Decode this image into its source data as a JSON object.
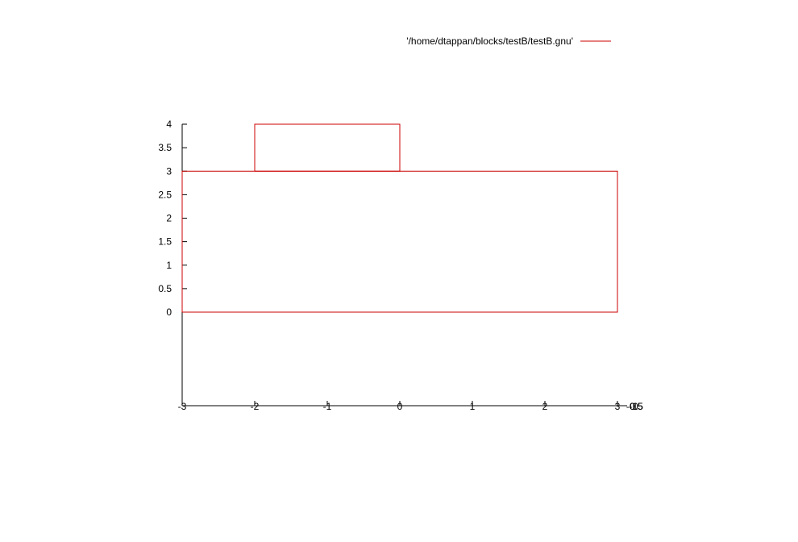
{
  "chart_data": {
    "type": "line",
    "title": "",
    "xlabel": "",
    "ylabel": "",
    "xlim": [
      -3,
      3
    ],
    "ylim": [
      0,
      4
    ],
    "grid": false,
    "legend_position": "top-right",
    "x_ticks": [
      -3,
      -2,
      -1,
      0,
      1,
      2,
      3
    ],
    "x_tick_labels": [
      "-3",
      "-2",
      "-1",
      "0",
      "1",
      "2",
      "3"
    ],
    "y_ticks": [
      0,
      0.5,
      1,
      1.5,
      2,
      2.5,
      3,
      3.5,
      4
    ],
    "y_tick_labels": [
      "0",
      "0.5",
      "1",
      "1.5",
      "2",
      "2.5",
      "3",
      "3.5",
      "4"
    ],
    "z_tick_labels": [
      "-1",
      "-0.5",
      "0",
      "0.5"
    ],
    "series": [
      {
        "name": "'/home/dtappan/blocks/testB/testB.gnu'",
        "color": "#cc0000",
        "segments": [
          {
            "x": [
              -3,
              3,
              3,
              -3,
              -3
            ],
            "y": [
              0,
              0,
              3,
              3,
              0
            ]
          },
          {
            "x": [
              -2,
              0,
              0,
              -2,
              -2
            ],
            "y": [
              3,
              3,
              4,
              4,
              3
            ]
          }
        ]
      }
    ]
  }
}
